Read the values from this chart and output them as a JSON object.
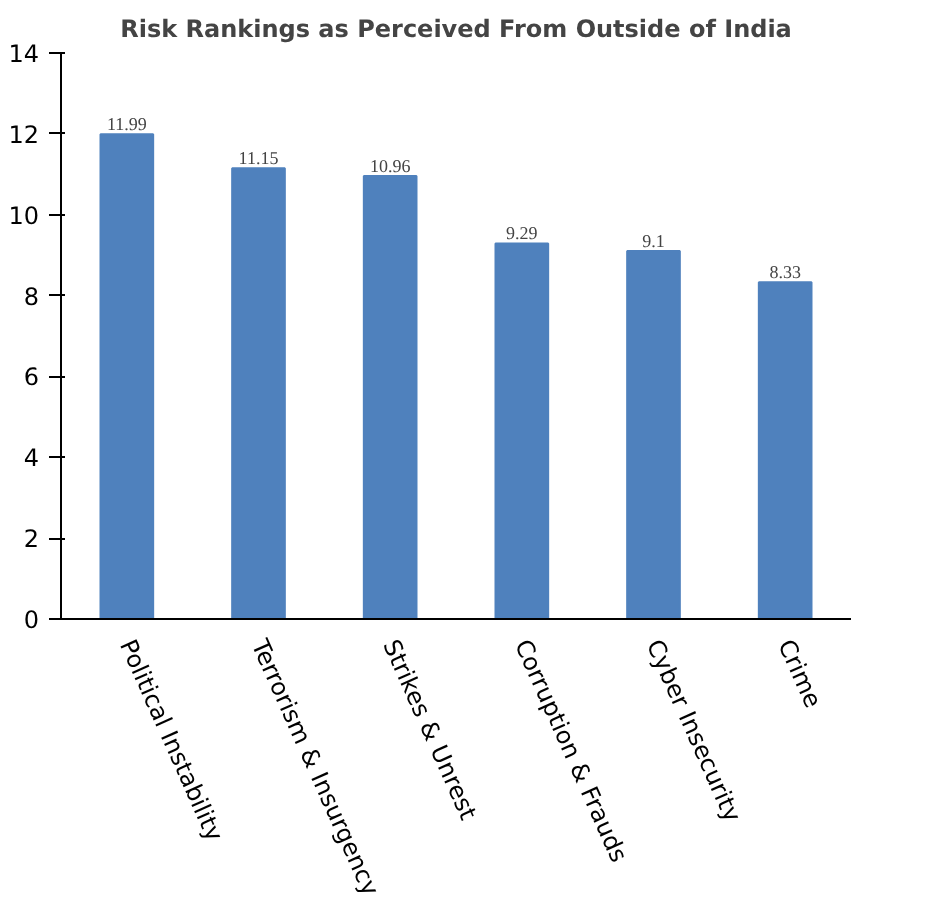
{
  "chart_data": {
    "type": "bar",
    "title": "Risk Rankings as Perceived From Outside of India",
    "categories": [
      "Political Instability",
      "Terrorism & Insurgency",
      "Strikes & Unrest",
      "Corruption & Frauds",
      "Cyber Insecurity",
      "Crime"
    ],
    "values": [
      11.99,
      11.15,
      10.96,
      9.29,
      9.1,
      8.33
    ],
    "color": "#4f81bd",
    "ylim": [
      0,
      14
    ],
    "yticks": [
      0,
      2,
      4,
      6,
      8,
      10,
      12,
      14
    ],
    "grid": false,
    "data_labels": true
  }
}
